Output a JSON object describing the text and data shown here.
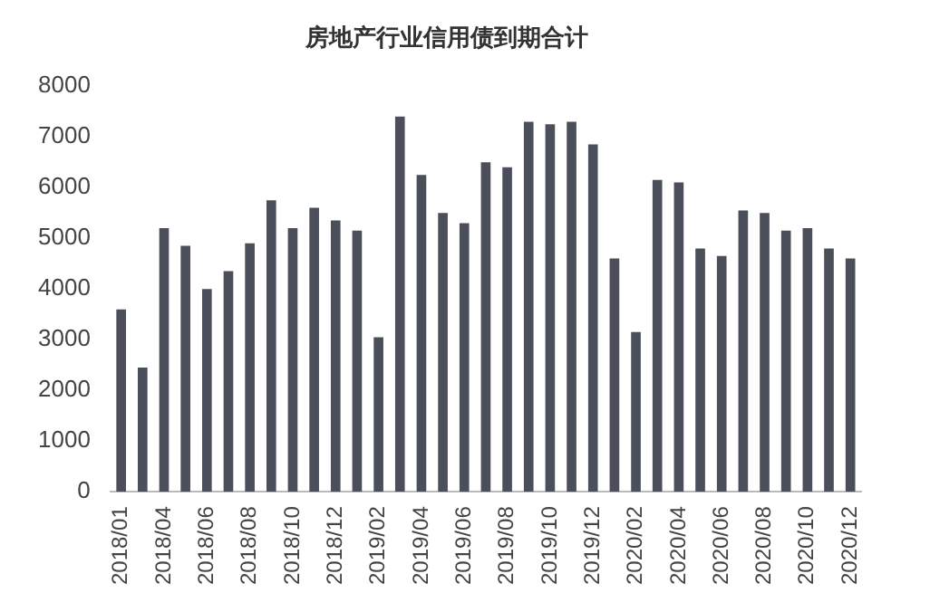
{
  "chart_data": {
    "type": "bar",
    "title": "房地产行业信用债到期合计",
    "categories": [
      "2018/01",
      null,
      "2018/04",
      null,
      "2018/06",
      null,
      "2018/08",
      null,
      "2018/10",
      null,
      "2018/12",
      null,
      "2019/02",
      null,
      "2019/04",
      null,
      "2019/06",
      null,
      "2019/08",
      null,
      "2019/10",
      null,
      "2019/12",
      null,
      "2020/02",
      null,
      "2020/04",
      null,
      "2020/06",
      null,
      "2020/08",
      null,
      "2020/10",
      null,
      "2020/12"
    ],
    "values": [
      3600,
      2450,
      5200,
      4850,
      4000,
      4350,
      4900,
      5750,
      5200,
      5600,
      5350,
      5150,
      3050,
      7400,
      6250,
      5500,
      5300,
      6500,
      6400,
      7300,
      7250,
      7300,
      6850,
      4600,
      3150,
      6150,
      6100,
      4800,
      4650,
      5550,
      5500,
      5150,
      5200,
      4800,
      4600
    ],
    "color": "#4a4f5a",
    "ylim": [
      0,
      8000
    ],
    "yticks": [
      0,
      1000,
      2000,
      3000,
      4000,
      5000,
      6000,
      7000,
      8000
    ],
    "grid": false,
    "legend": false
  }
}
